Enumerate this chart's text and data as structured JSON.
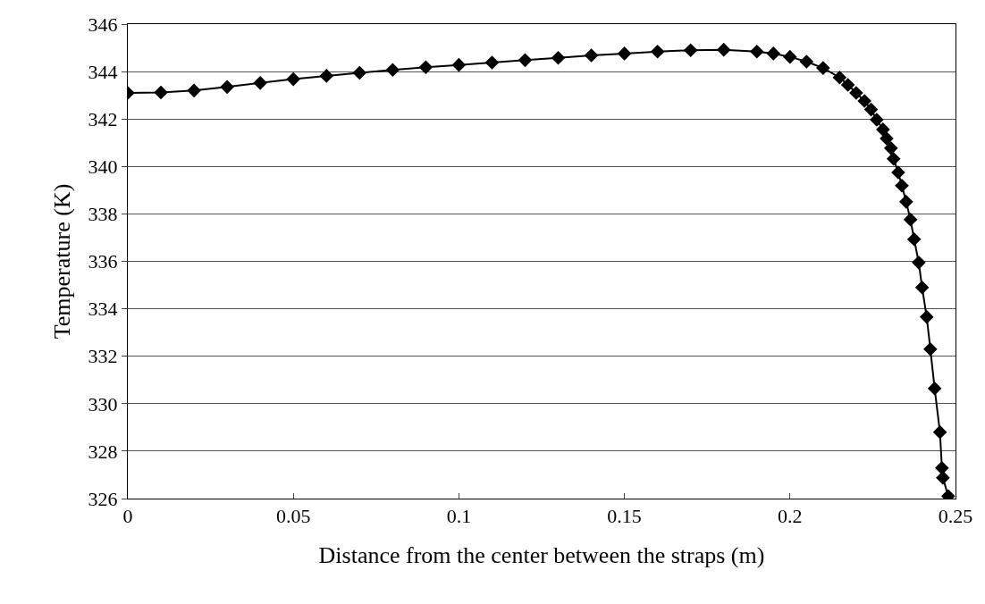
{
  "chart_data": {
    "type": "line",
    "xlabel": "Distance from the center between the straps (m)",
    "ylabel": "Temperature (K)",
    "x": [
      0,
      0.01,
      0.02,
      0.03,
      0.04,
      0.05,
      0.06,
      0.07,
      0.08,
      0.09,
      0.1,
      0.11,
      0.12,
      0.13,
      0.14,
      0.15,
      0.16,
      0.17,
      0.18,
      0.19,
      0.195,
      0.2,
      0.205,
      0.21,
      0.215,
      0.2175,
      0.22,
      0.2225,
      0.2245,
      0.2262,
      0.2281,
      0.2292,
      0.2305,
      0.2313,
      0.2327,
      0.2338,
      0.2351,
      0.2364,
      0.2375,
      0.2389,
      0.2399,
      0.2413,
      0.2424,
      0.2437,
      0.2453,
      0.2459,
      0.2462,
      0.2478
    ],
    "series": [
      {
        "color": "#000000",
        "values": [
          343.1,
          343.12,
          343.2,
          343.35,
          343.52,
          343.68,
          343.82,
          343.95,
          344.07,
          344.18,
          344.28,
          344.38,
          344.48,
          344.58,
          344.68,
          344.76,
          344.84,
          344.9,
          344.92,
          344.84,
          344.76,
          344.62,
          344.42,
          344.15,
          343.75,
          343.44,
          343.1,
          342.76,
          342.4,
          341.97,
          341.56,
          341.18,
          340.77,
          340.32,
          339.75,
          339.19,
          338.51,
          337.76,
          336.93,
          335.95,
          334.9,
          333.66,
          332.3,
          330.64,
          328.8,
          327.29,
          326.88,
          326.1
        ]
      }
    ],
    "xlim": [
      0,
      0.25
    ],
    "xticks": [
      0,
      0.05,
      0.1,
      0.15,
      0.2,
      0.25
    ],
    "ylim": [
      326,
      346
    ],
    "yticks": [
      326,
      328,
      330,
      332,
      334,
      336,
      338,
      340,
      342,
      344,
      346
    ],
    "grid": "y",
    "marker": "diamond",
    "line_style": "solid"
  }
}
